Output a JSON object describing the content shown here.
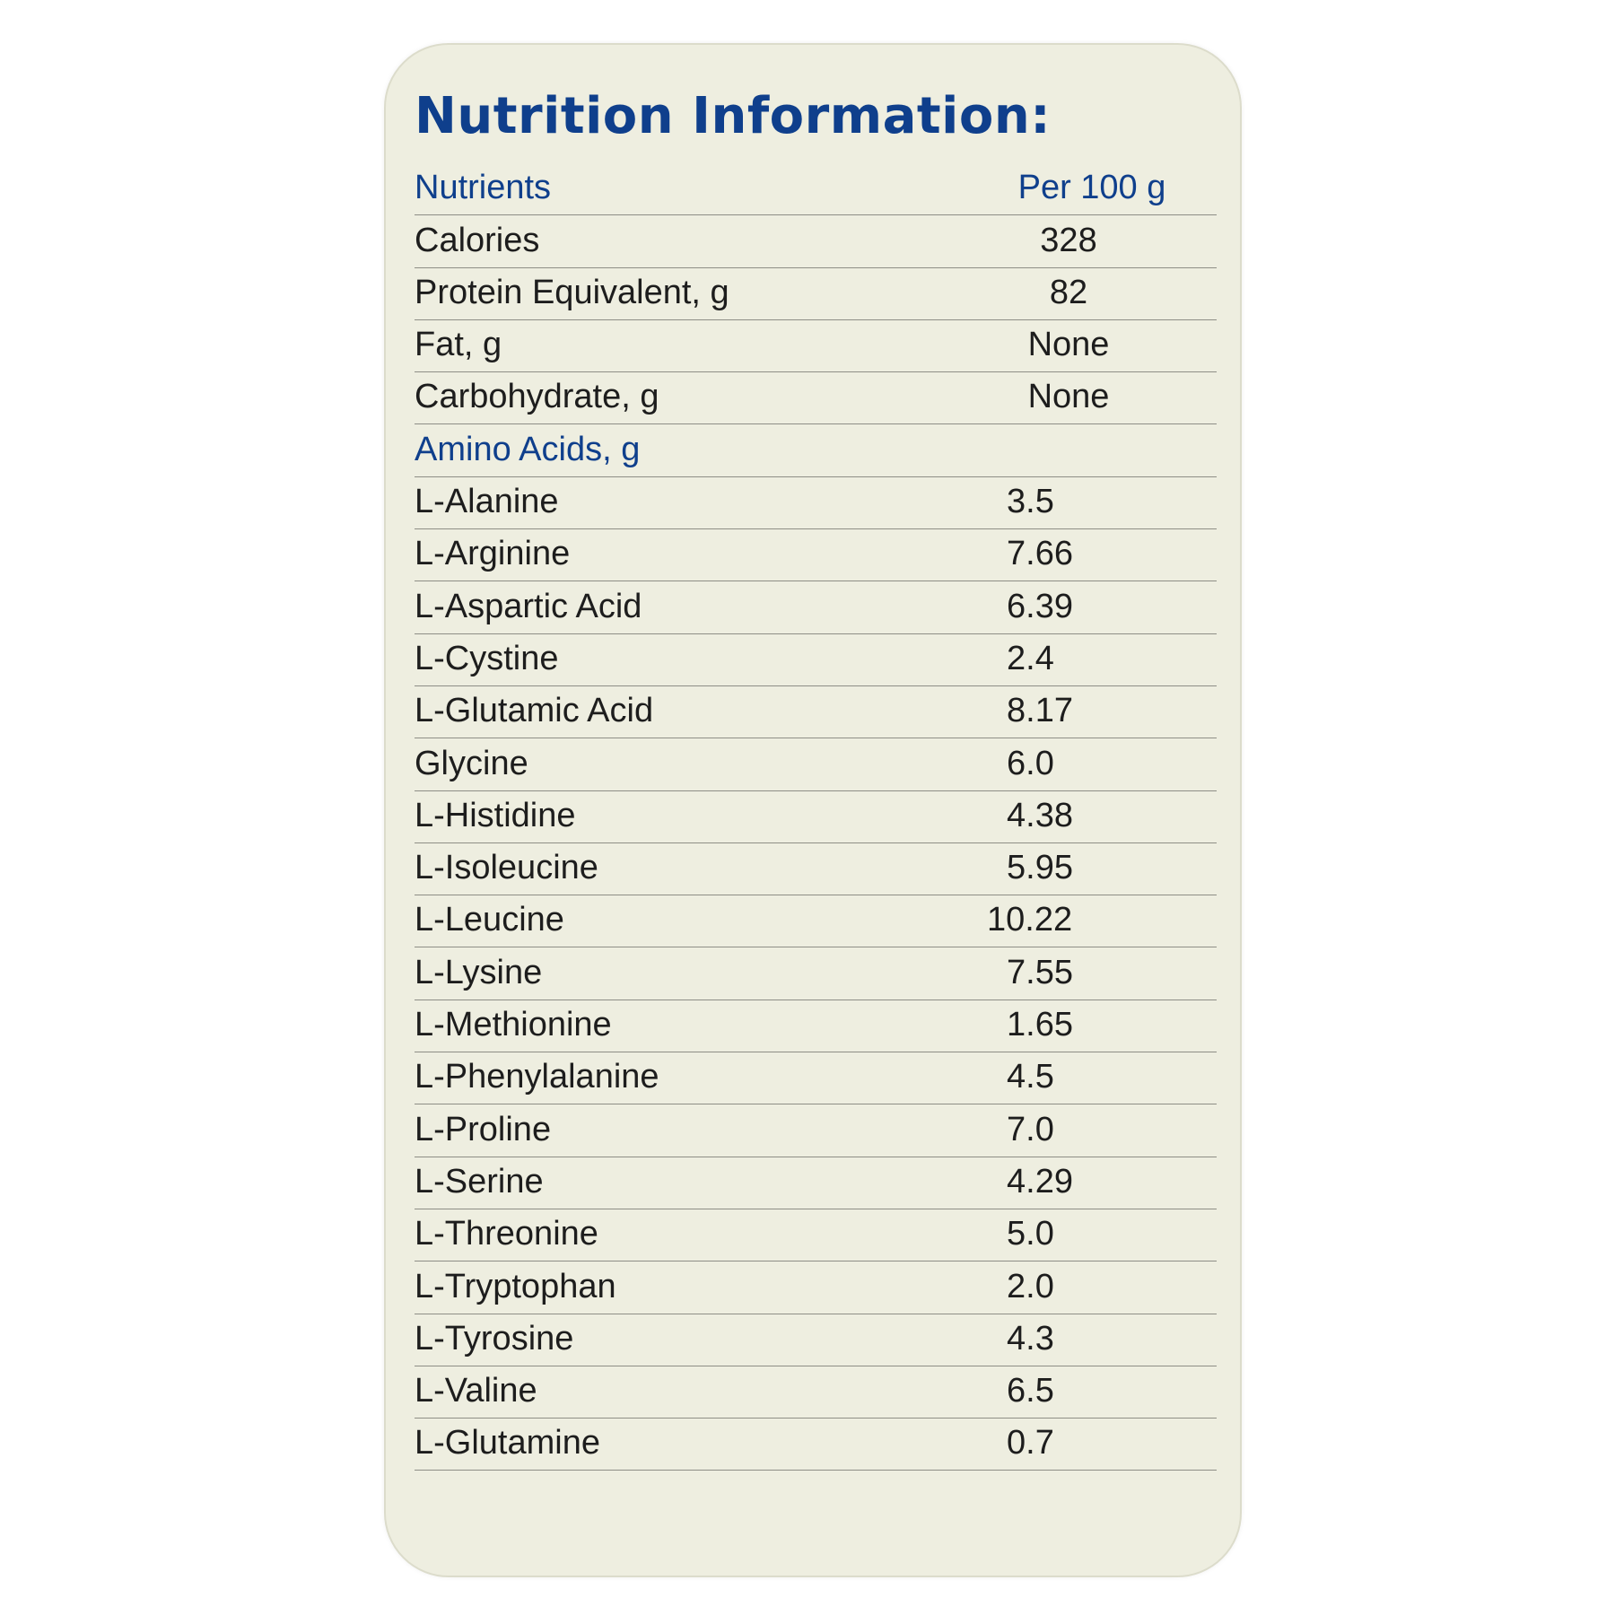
{
  "label": {
    "title": "Nutrition Information:",
    "header": {
      "name": "Nutrients",
      "value": "Per 100 g"
    },
    "basics": [
      {
        "name": "Calories",
        "value": "328"
      },
      {
        "name": "Protein Equivalent, g",
        "value": "82"
      },
      {
        "name": "Fat, g",
        "value": "None"
      },
      {
        "name": "Carbohydrate, g",
        "value": "None"
      }
    ],
    "section_title": "Amino Acids, g",
    "amino_acids": [
      {
        "name": "L-Alanine",
        "value": "3.5"
      },
      {
        "name": "L-Arginine",
        "value": "7.66"
      },
      {
        "name": "L-Aspartic Acid",
        "value": "6.39"
      },
      {
        "name": "L-Cystine",
        "value": "2.4"
      },
      {
        "name": "L-Glutamic Acid",
        "value": "8.17"
      },
      {
        "name": "Glycine",
        "value": "6.0"
      },
      {
        "name": "L-Histidine",
        "value": "4.38"
      },
      {
        "name": "L-Isoleucine",
        "value": "5.95"
      },
      {
        "name": "L-Leucine",
        "value": "10.22"
      },
      {
        "name": "L-Lysine",
        "value": "7.55"
      },
      {
        "name": "L-Methionine",
        "value": "1.65"
      },
      {
        "name": "L-Phenylalanine",
        "value": "4.5"
      },
      {
        "name": "L-Proline",
        "value": "7.0"
      },
      {
        "name": "L-Serine",
        "value": "4.29"
      },
      {
        "name": "L-Threonine",
        "value": "5.0"
      },
      {
        "name": "L-Tryptophan",
        "value": "2.0"
      },
      {
        "name": "L-Tyrosine",
        "value": "4.3"
      },
      {
        "name": "L-Valine",
        "value": "6.5"
      },
      {
        "name": "L-Glutamine",
        "value": "0.7"
      }
    ],
    "colors": {
      "heading": "#0f3f8c",
      "text": "#1d1d1d",
      "card": "#eeeee0",
      "rule": "#8e8e86"
    }
  }
}
